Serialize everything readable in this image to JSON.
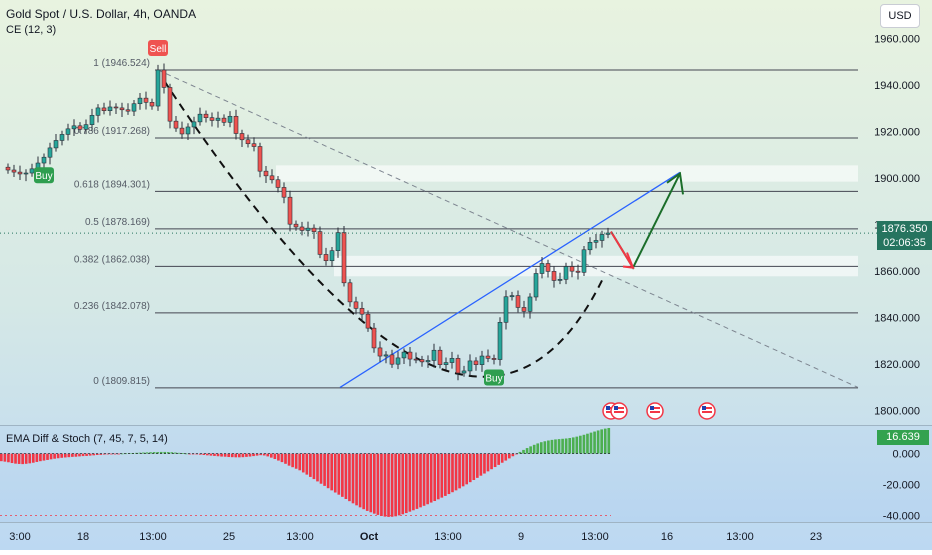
{
  "header": {
    "title": "Gold Spot / U.S. Dollar, 4h, OANDA",
    "subtitle": "CE (12, 3)",
    "currency_button": "USD"
  },
  "colors": {
    "up": "#26a69a",
    "down": "#ef5350",
    "fib_line": "#434651",
    "bg_top": "#e8f3e0",
    "bg_bottom": "#bcd8f2",
    "trendline_blue": "#2962ff",
    "arrow_red": "#f23645",
    "arrow_green": "#1b6e2a",
    "hist_positive": "#4caf50",
    "hist_negative": "#f23645"
  },
  "chart_data": [
    {
      "type": "candlestick",
      "title": "Gold Spot / U.S. Dollar, 4h, OANDA",
      "x_tick_labels": [
        "3:00",
        "18",
        "13:00",
        "25",
        "13:00",
        "Oct",
        "13:00",
        "9",
        "13:00",
        "16",
        "13:00",
        "23"
      ],
      "y_tick_labels": [
        "1960.000",
        "1940.000",
        "1920.000",
        "1900.000",
        "1880.000",
        "1860.000",
        "1840.000",
        "1820.000",
        "1800.000"
      ],
      "ylim": [
        1796,
        1968
      ],
      "last_price": "1876.350",
      "countdown": "02:06:35",
      "close_series": [
        1903.5,
        1902.6,
        1901.8,
        1902.2,
        1904.0,
        1906.5,
        1909.0,
        1913.0,
        1916.2,
        1918.8,
        1921.2,
        1922.5,
        1921.0,
        1923.0,
        1927.0,
        1930.2,
        1929.0,
        1930.6,
        1930.2,
        1929.4,
        1928.8,
        1932.0,
        1934.4,
        1932.6,
        1931.0,
        1946.5,
        1939.0,
        1924.5,
        1921.5,
        1919.0,
        1922.0,
        1924.2,
        1927.5,
        1926.0,
        1924.8,
        1925.8,
        1924.0,
        1926.6,
        1919.2,
        1916.5,
        1914.8,
        1913.6,
        1903.0,
        1901.0,
        1899.3,
        1896.0,
        1891.8,
        1880.2,
        1879.0,
        1877.5,
        1878.5,
        1877.0,
        1867.2,
        1864.5,
        1868.8,
        1876.6,
        1855.0,
        1846.8,
        1844.0,
        1841.5,
        1835.5,
        1827.0,
        1823.5,
        1824.0,
        1820.0,
        1822.7,
        1825.2,
        1822.2,
        1822.0,
        1821.0,
        1821.6,
        1826.0,
        1819.8,
        1820.7,
        1822.5,
        1816.2,
        1817.1,
        1821.4,
        1819.8,
        1823.5,
        1822.5,
        1822.0,
        1838.0,
        1849.0,
        1849.5,
        1844.4,
        1842.7,
        1848.9,
        1859.0,
        1863.3,
        1859.9,
        1856.0,
        1856.5,
        1862.0,
        1860.0,
        1859.5,
        1869.2,
        1872.4,
        1873.2,
        1875.8,
        1876.4
      ],
      "fibonacci": [
        {
          "label": "1 (1946.524)",
          "value": 1946.524
        },
        {
          "label": "0.786 (1917.268)",
          "value": 1917.268
        },
        {
          "label": "0.618 (1894.301)",
          "value": 1894.301
        },
        {
          "label": "0.5 (1878.169)",
          "value": 1878.169
        },
        {
          "label": "0.382 (1862.038)",
          "value": 1862.038
        },
        {
          "label": "0.236 (1842.078)",
          "value": 1842.078
        },
        {
          "label": "0 (1809.815)",
          "value": 1809.815
        }
      ],
      "zones": [
        {
          "from": 1898.5,
          "to": 1905.5
        },
        {
          "from": 1857.8,
          "to": 1866.6
        }
      ],
      "signals": [
        {
          "label": "Sell",
          "index": 25
        },
        {
          "label": "Buy",
          "index": 6
        },
        {
          "label": "Buy",
          "index": 81
        }
      ]
    },
    {
      "type": "bar",
      "title": "EMA Diff & Stoch (7, 45, 7, 5, 14)",
      "last_value": "16.639",
      "y_tick_labels": [
        "0.000",
        "-20.000",
        "-40.000"
      ],
      "ylim": [
        -43,
        14
      ],
      "values": [
        -4.9,
        -5.2,
        -5.6,
        -6.1,
        -6.5,
        -6.7,
        -6.8,
        -6.6,
        -6.3,
        -5.9,
        -5.4,
        -4.9,
        -4.5,
        -4.1,
        -3.7,
        -3.3,
        -3.0,
        -2.7,
        -2.5,
        -2.3,
        -2.1,
        -2.0,
        -1.8,
        -1.6,
        -1.5,
        -1.3,
        -1.1,
        -0.9,
        -0.8,
        -0.6,
        -0.5,
        -0.3,
        -0.2,
        -0.1,
        0.1,
        0.2,
        0.3,
        0.4,
        0.5,
        0.6,
        0.7,
        0.8,
        0.9,
        1.0,
        1.0,
        1.1,
        1.1,
        1.0,
        0.9,
        0.7,
        0.5,
        0.3,
        0.1,
        -0.1,
        -0.3,
        -0.5,
        -0.7,
        -0.9,
        -1.1,
        -1.3,
        -1.5,
        -1.7,
        -1.9,
        -2.0,
        -2.2,
        -2.3,
        -2.4,
        -2.4,
        -2.3,
        -2.1,
        -1.9,
        -1.6,
        -1.3,
        -1.0,
        -1.2,
        -1.8,
        -2.6,
        -3.5,
        -4.5,
        -5.5,
        -6.6,
        -7.8,
        -8.8,
        -9.8,
        -10.8,
        -12.2,
        -13.6,
        -15.1,
        -16.5,
        -18.0,
        -19.5,
        -20.9,
        -22.4,
        -23.8,
        -25.2,
        -26.6,
        -28.0,
        -29.4,
        -30.8,
        -32.2,
        -33.5,
        -34.8,
        -36.0,
        -37.1,
        -38.0,
        -38.9,
        -39.7,
        -40.4,
        -40.8,
        -41.0,
        -40.9,
        -40.6,
        -40.0,
        -39.3,
        -38.5,
        -37.6,
        -36.7,
        -35.8,
        -34.8,
        -33.8,
        -32.8,
        -31.7,
        -30.7,
        -29.6,
        -28.5,
        -27.4,
        -26.2,
        -25.0,
        -23.8,
        -22.5,
        -21.2,
        -19.9,
        -18.5,
        -17.1,
        -15.7,
        -14.3,
        -12.9,
        -11.5,
        -10.1,
        -8.7,
        -7.3,
        -5.9,
        -4.5,
        -3.1,
        -1.7,
        -0.3,
        1.1,
        2.4,
        3.6,
        4.7,
        5.7,
        6.6,
        7.4,
        8.0,
        8.5,
        8.9,
        9.2,
        9.4,
        9.6,
        9.8,
        10.1,
        10.5,
        11.0,
        11.6,
        12.2,
        12.9,
        13.6,
        14.3,
        15.0,
        15.7,
        16.2,
        16.6
      ]
    }
  ],
  "x_axis": {
    "labels": [
      "3:00",
      "18",
      "13:00",
      "25",
      "13:00",
      "Oct",
      "13:00",
      "9",
      "13:00",
      "16",
      "13:00",
      "23"
    ]
  },
  "events": [
    "us-flag-event-icon",
    "us-flag-event-icon",
    "us-flag-event-icon",
    "us-flag-event-icon"
  ]
}
